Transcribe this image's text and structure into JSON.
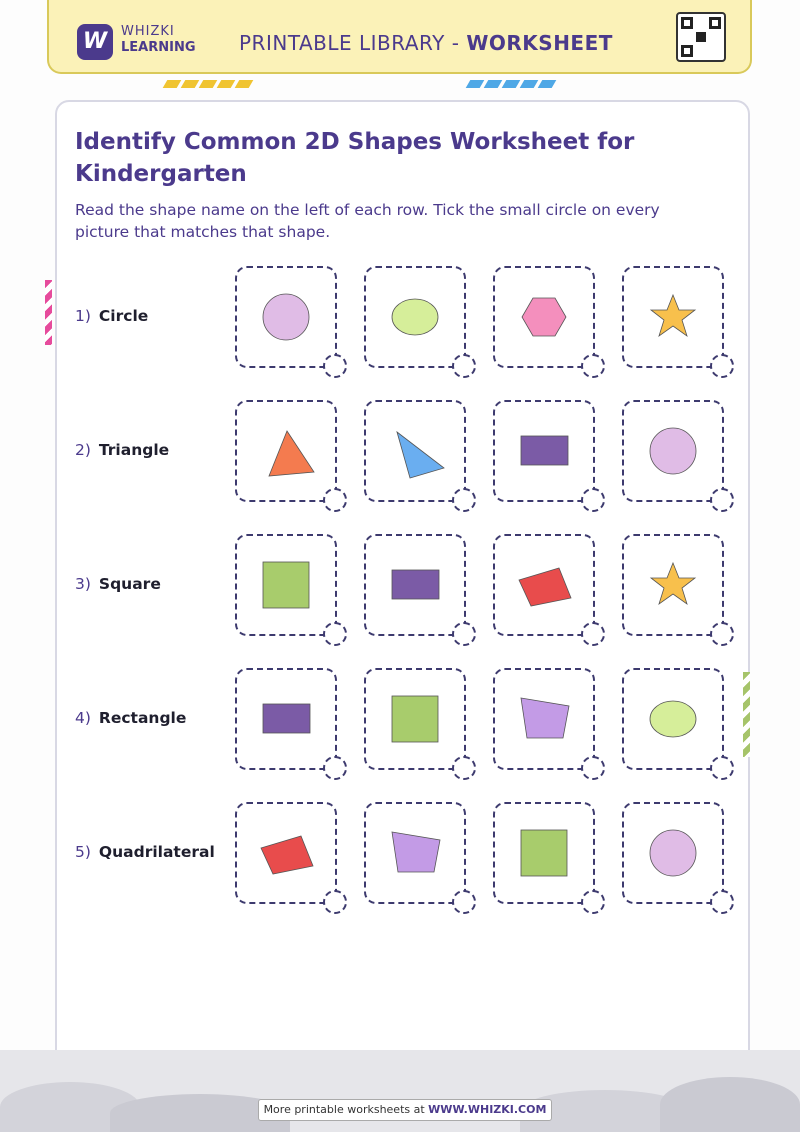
{
  "header": {
    "logo_mark": "W",
    "logo_line1": "WHIZKI",
    "logo_line2": "LEARNING",
    "title_prefix": "PRINTABLE LIBRARY - ",
    "title_bold": "WORKSHEET"
  },
  "worksheet": {
    "title": "Identify Common 2D Shapes Worksheet for Kindergarten",
    "instructions": "Read the shape name on the left of each row. Tick the small circle on every picture that matches that shape."
  },
  "rows": [
    {
      "number": "1)",
      "name": "Circle",
      "shapes": [
        "circle",
        "oval",
        "hexagon",
        "star"
      ]
    },
    {
      "number": "2)",
      "name": "Triangle",
      "shapes": [
        "triangle-orange",
        "triangle-blue",
        "rectangle-purple",
        "circle"
      ]
    },
    {
      "number": "3)",
      "name": "Square",
      "shapes": [
        "square-green",
        "rectangle-purple",
        "quadrilateral-red",
        "star"
      ]
    },
    {
      "number": "4)",
      "name": "Rectangle",
      "shapes": [
        "rectangle-purple",
        "square-green",
        "trapezoid-violet",
        "oval"
      ]
    },
    {
      "number": "5)",
      "name": "Quadrilateral",
      "shapes": [
        "quadrilateral-red",
        "trapezoid-violet",
        "square-green",
        "circle"
      ]
    }
  ],
  "colors": {
    "brand_purple": "#4b3a8c",
    "header_yellow": "#fbf2b8",
    "circle_fill": "#e0bce6",
    "oval_fill": "#d6ee9a",
    "hexagon_fill": "#f48fbd",
    "star_fill": "#f8c04c",
    "orange": "#f47b4f",
    "blue": "#6aaef0",
    "purple_rect": "#7b5ba6",
    "green": "#a8cc6c",
    "red": "#e84c4c",
    "violet": "#c39be6"
  },
  "footer": {
    "text_prefix": "More printable worksheets at ",
    "text_link": "WWW.WHIZKI.COM"
  }
}
